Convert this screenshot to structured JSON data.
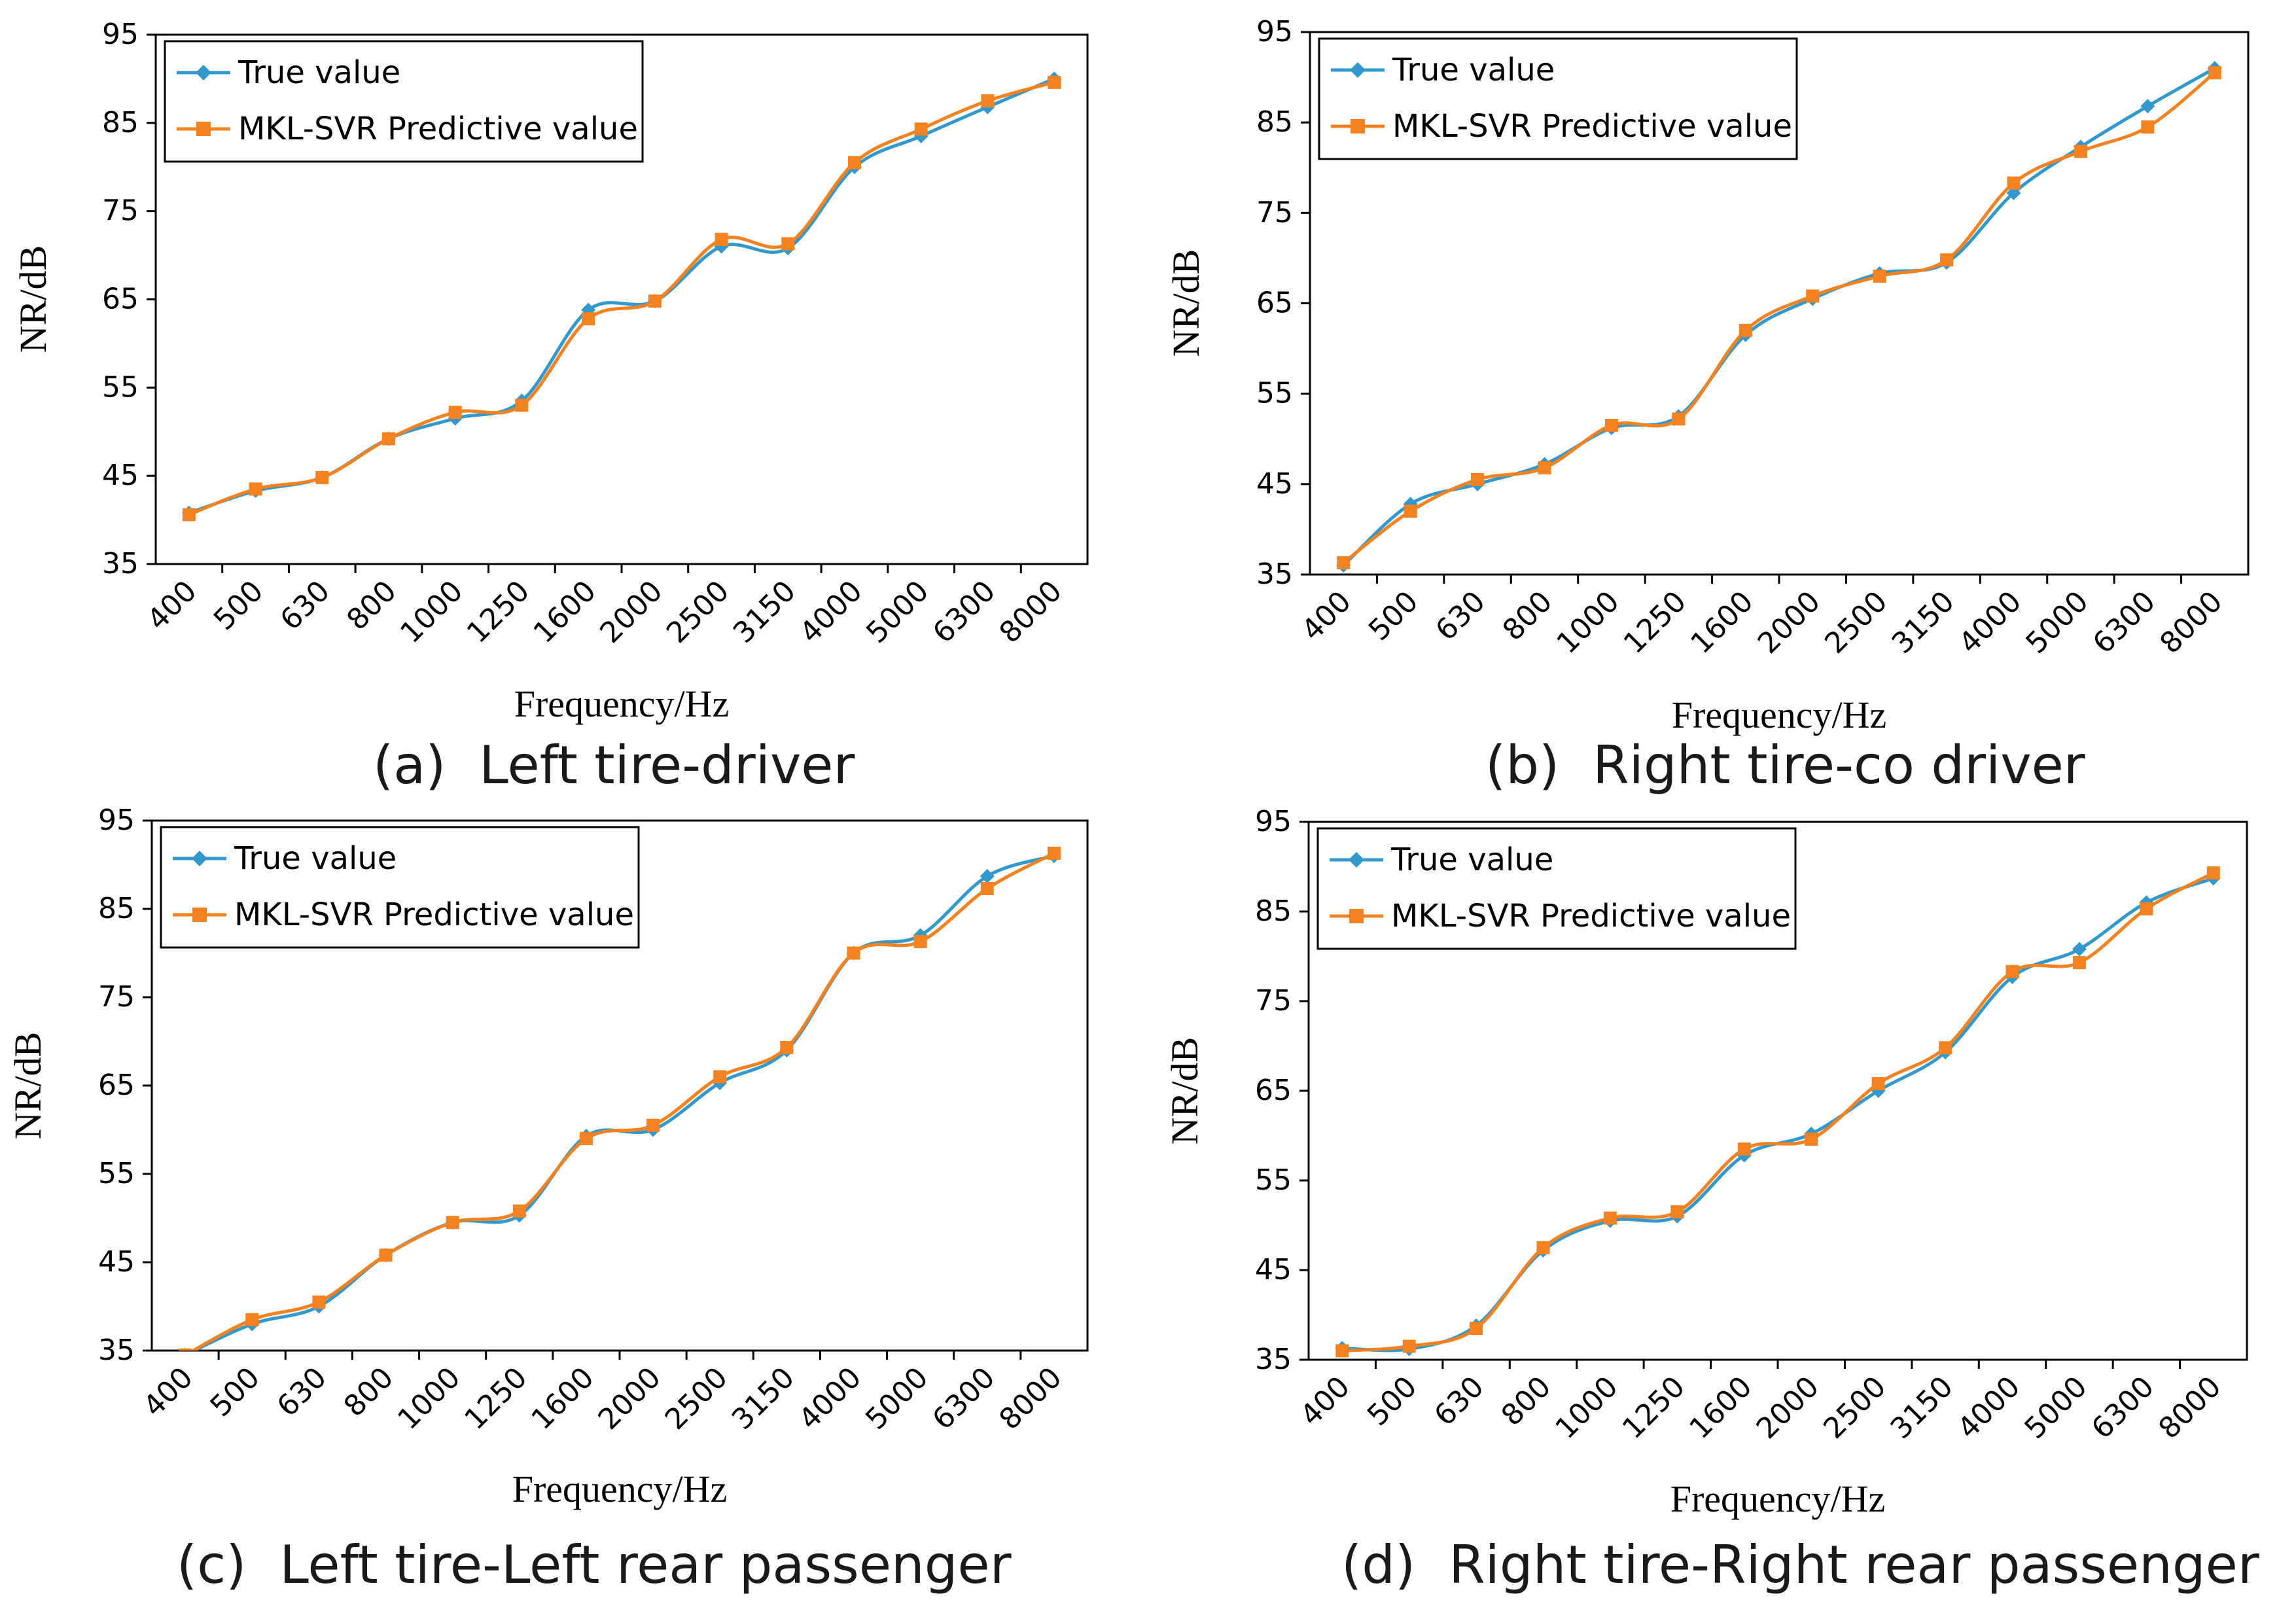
{
  "chart_data": [
    {
      "type": "line",
      "caption": "(a)  Left tire-driver",
      "categories": [
        "400",
        "500",
        "630",
        "800",
        "1000",
        "1250",
        "1600",
        "2000",
        "2500",
        "3150",
        "4000",
        "5000",
        "6300",
        "8000"
      ],
      "series": [
        {
          "name": "True value",
          "color": "#3399cc",
          "marker": "diamond",
          "values": [
            40.8,
            43.3,
            44.8,
            49.2,
            51.5,
            53.5,
            63.8,
            64.8,
            71.0,
            70.8,
            80.0,
            83.5,
            86.8,
            90.0
          ]
        },
        {
          "name": "MKL-SVR Predictive value",
          "color": "#f58220",
          "marker": "square",
          "values": [
            40.6,
            43.5,
            44.8,
            49.2,
            52.2,
            53.0,
            62.8,
            64.8,
            71.8,
            71.3,
            80.5,
            84.3,
            87.5,
            89.6
          ]
        }
      ],
      "xlabel": "Frequency/Hz",
      "ylabel": "NR/dB",
      "ylim": [
        35,
        95
      ],
      "yticks": [
        35,
        45,
        55,
        65,
        75,
        85,
        95
      ],
      "grid": false,
      "legend": "top-left"
    },
    {
      "type": "line",
      "caption": "(b)  Right tire-co driver",
      "categories": [
        "400",
        "500",
        "630",
        "800",
        "1000",
        "1250",
        "1600",
        "2000",
        "2500",
        "3150",
        "4000",
        "5000",
        "6300",
        "8000"
      ],
      "series": [
        {
          "name": "True value",
          "color": "#3399cc",
          "marker": "diamond",
          "values": [
            36.0,
            42.8,
            45.0,
            47.2,
            51.2,
            52.5,
            61.5,
            65.5,
            68.3,
            69.5,
            77.2,
            82.3,
            86.8,
            91.0
          ]
        },
        {
          "name": "MKL-SVR Predictive value",
          "color": "#f58220",
          "marker": "square",
          "values": [
            36.3,
            42.0,
            45.5,
            46.8,
            51.5,
            52.2,
            62.0,
            65.8,
            68.0,
            69.8,
            78.3,
            81.8,
            84.5,
            90.5
          ]
        }
      ],
      "xlabel": "Frequency/Hz",
      "ylabel": "NR/dB",
      "ylim": [
        35,
        95
      ],
      "yticks": [
        35,
        45,
        55,
        65,
        75,
        85,
        95
      ],
      "grid": false,
      "legend": "top-left"
    },
    {
      "type": "line",
      "caption": "(c)  Left tire-Left rear passenger",
      "categories": [
        "400",
        "500",
        "630",
        "800",
        "1000",
        "1250",
        "1600",
        "2000",
        "2500",
        "3150",
        "4000",
        "5000",
        "6300",
        "8000"
      ],
      "series": [
        {
          "name": "True value",
          "color": "#3399cc",
          "marker": "diamond",
          "values": [
            34.5,
            38.0,
            40.0,
            45.8,
            49.5,
            50.3,
            59.3,
            60.0,
            65.3,
            69.0,
            80.0,
            82.0,
            88.7,
            91.0
          ]
        },
        {
          "name": "MKL-SVR Predictive value",
          "color": "#f58220",
          "marker": "square",
          "values": [
            34.5,
            38.5,
            40.5,
            45.8,
            49.5,
            50.8,
            59.0,
            60.5,
            66.0,
            69.3,
            80.0,
            81.3,
            87.3,
            91.3
          ]
        }
      ],
      "xlabel": "Frequency/Hz",
      "ylabel": "NR/dB",
      "ylim": [
        35,
        95
      ],
      "yticks": [
        35,
        45,
        55,
        65,
        75,
        85,
        95
      ],
      "grid": false,
      "legend": "top-left"
    },
    {
      "type": "line",
      "caption": "(d)  Right tire-Right rear passenger",
      "categories": [
        "400",
        "500",
        "630",
        "800",
        "1000",
        "1250",
        "1600",
        "2000",
        "2500",
        "3150",
        "4000",
        "5000",
        "6300",
        "8000"
      ],
      "series": [
        {
          "name": "True value",
          "color": "#3399cc",
          "marker": "diamond",
          "values": [
            36.3,
            36.2,
            38.8,
            47.2,
            50.5,
            51.0,
            57.8,
            60.2,
            65.0,
            69.3,
            77.7,
            80.8,
            86.0,
            88.7
          ]
        },
        {
          "name": "MKL-SVR Predictive value",
          "color": "#f58220",
          "marker": "square",
          "values": [
            36.0,
            36.5,
            38.5,
            47.5,
            50.8,
            51.5,
            58.5,
            59.6,
            65.8,
            69.8,
            78.3,
            79.3,
            85.3,
            89.3
          ]
        }
      ],
      "xlabel": "Frequency/Hz",
      "ylabel": "NR/dB",
      "ylim": [
        35,
        95
      ],
      "yticks": [
        35,
        45,
        55,
        65,
        75,
        85,
        95
      ],
      "grid": false,
      "legend": "top-left"
    }
  ]
}
